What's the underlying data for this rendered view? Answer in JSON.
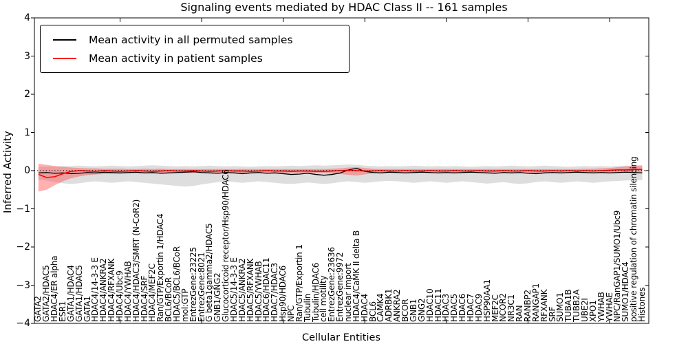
{
  "chart_data": {
    "type": "line",
    "title": "Signaling events mediated by HDAC Class II -- 161 samples",
    "xlabel": "Cellular Entities",
    "ylabel": "Inferred Activity",
    "ylim": [
      -4,
      4
    ],
    "grid": false,
    "legend_position": "upper left",
    "zero_line": {
      "y": 0,
      "style": "dotted",
      "color": "#000000"
    },
    "yticks": [
      {
        "v": 4,
        "label": "4"
      },
      {
        "v": 3,
        "label": "3"
      },
      {
        "v": 2,
        "label": "2"
      },
      {
        "v": 1,
        "label": "1"
      },
      {
        "v": 0,
        "label": "0"
      },
      {
        "v": -1,
        "label": "−1"
      },
      {
        "v": -2,
        "label": "−2"
      },
      {
        "v": -3,
        "label": "−3"
      },
      {
        "v": -4,
        "label": "−4"
      }
    ],
    "xticks_every": 10,
    "legend": [
      {
        "label": "Mean activity in all permuted samples",
        "color": "#000000"
      },
      {
        "label": "Mean activity in patient samples",
        "color": "#ff0000"
      }
    ],
    "categories": [
      "GATA2",
      "GATA2/HDAC5",
      "HDAC4/ER alpha",
      "ESR1",
      "GATA1/HDAC4",
      "GATA1/HDAC5",
      "GATA1",
      "HDAC4/14-3-3 E",
      "HDAC4/ANKRA2",
      "HDAC4/RFXANK",
      "HDAC4/Ubc9",
      "HDAC4/YWHAB",
      "HDAC4/HDAC3/SMRT (N-CoR2)",
      "HDAC4/SRF",
      "HDAC4/MEF2C",
      "Ran/GTP/Exportin 1/HDAC4",
      "BCL6/BCoR",
      "HDAC5/BCL6/BCoR",
      "mol:GTP",
      "EntrezGene:23225",
      "EntrezGene:8021",
      "G beta1gamma2/HDAC5",
      "GNB1/GNG2",
      "Glucocorticoid receptor/Hsp90/HDAC6",
      "HDAC5/14-3-3 E",
      "HDAC5/ANKRA2",
      "HDAC5/RFXANK",
      "HDAC5/YWHAB",
      "HDAC6/HDAC11",
      "HDAC7/HDAC3",
      "Hsp90/HDAC6",
      "NPC",
      "Ran/GTP/Exportin 1",
      "Tubulin",
      "Tubulin/HDAC6",
      "cell motility",
      "EntrezGene:23636",
      "EntrezGene:9972",
      "nuclear import",
      "HDAC4/CaMK II delta B",
      "HDAC4",
      "BCL6",
      "CAMK4",
      "ADRBK1",
      "ANKRA2",
      "BCOR",
      "GNB1",
      "GNG2",
      "HDAC10",
      "HDAC11",
      "HDAC3",
      "HDAC5",
      "HDAC6",
      "HDAC7",
      "HDAC9",
      "HSP90AA1",
      "MEF2C",
      "NCOR2",
      "NR3C1",
      "RAN",
      "RANBP2",
      "RANGAP1",
      "RFXANK",
      "SRF",
      "SUMO1",
      "TUBA1B",
      "TUBB2A",
      "UBE2I",
      "XPO1",
      "YWHAB",
      "YWHAE",
      "NPC/RanGAP1/SUMO1/Ubc9",
      "SUMO1/HDAC4",
      "positive regulation of chromatin silencing",
      "Histones"
    ],
    "series": [
      {
        "name": "Mean activity in all permuted samples",
        "color": "#000000",
        "band_color": "#dedede",
        "band_opacity": 1,
        "values": [
          -0.06,
          -0.05,
          -0.07,
          -0.06,
          -0.08,
          -0.07,
          -0.05,
          -0.06,
          -0.04,
          -0.05,
          -0.06,
          -0.05,
          -0.04,
          -0.06,
          -0.05,
          -0.07,
          -0.06,
          -0.05,
          -0.04,
          -0.03,
          -0.05,
          -0.06,
          -0.07,
          -0.05,
          -0.06,
          -0.08,
          -0.06,
          -0.05,
          -0.07,
          -0.06,
          -0.08,
          -0.1,
          -0.09,
          -0.07,
          -0.1,
          -0.12,
          -0.1,
          -0.06,
          0.02,
          0.06,
          -0.02,
          -0.05,
          -0.06,
          -0.04,
          -0.05,
          -0.06,
          -0.05,
          -0.04,
          -0.05,
          -0.06,
          -0.05,
          -0.06,
          -0.05,
          -0.04,
          -0.05,
          -0.06,
          -0.07,
          -0.05,
          -0.06,
          -0.05,
          -0.07,
          -0.08,
          -0.06,
          -0.05,
          -0.06,
          -0.05,
          -0.04,
          -0.05,
          -0.06,
          -0.05,
          -0.06,
          -0.05,
          -0.04,
          -0.05,
          -0.06
        ],
        "band_hi": [
          0.1,
          0.1,
          0.11,
          0.12,
          0.12,
          0.13,
          0.12,
          0.11,
          0.12,
          0.13,
          0.12,
          0.11,
          0.12,
          0.13,
          0.14,
          0.13,
          0.12,
          0.11,
          0.12,
          0.11,
          0.12,
          0.13,
          0.12,
          0.11,
          0.12,
          0.11,
          0.1,
          0.11,
          0.12,
          0.11,
          0.12,
          0.13,
          0.12,
          0.13,
          0.14,
          0.13,
          0.14,
          0.15,
          0.16,
          0.15,
          0.13,
          0.12,
          0.11,
          0.12,
          0.11,
          0.12,
          0.13,
          0.12,
          0.11,
          0.12,
          0.11,
          0.12,
          0.11,
          0.1,
          0.11,
          0.12,
          0.11,
          0.12,
          0.13,
          0.12,
          0.11,
          0.12,
          0.13,
          0.12,
          0.11,
          0.1,
          0.11,
          0.12,
          0.11,
          0.12,
          0.11,
          0.12,
          0.13,
          0.12,
          0.12
        ],
        "band_lo": [
          -0.23,
          -0.26,
          -0.3,
          -0.33,
          -0.35,
          -0.33,
          -0.3,
          -0.28,
          -0.3,
          -0.32,
          -0.3,
          -0.28,
          -0.3,
          -0.32,
          -0.34,
          -0.36,
          -0.38,
          -0.4,
          -0.42,
          -0.4,
          -0.36,
          -0.33,
          -0.3,
          -0.28,
          -0.3,
          -0.32,
          -0.3,
          -0.28,
          -0.3,
          -0.32,
          -0.34,
          -0.35,
          -0.33,
          -0.31,
          -0.33,
          -0.35,
          -0.33,
          -0.3,
          -0.28,
          -0.3,
          -0.32,
          -0.3,
          -0.28,
          -0.27,
          -0.28,
          -0.3,
          -0.32,
          -0.3,
          -0.28,
          -0.3,
          -0.32,
          -0.3,
          -0.28,
          -0.3,
          -0.32,
          -0.34,
          -0.32,
          -0.3,
          -0.33,
          -0.35,
          -0.33,
          -0.3,
          -0.28,
          -0.3,
          -0.32,
          -0.3,
          -0.28,
          -0.3,
          -0.32,
          -0.3,
          -0.28,
          -0.27,
          -0.26,
          -0.25,
          -0.25
        ]
      },
      {
        "name": "Mean activity in patient samples",
        "color": "#ff0000",
        "band_color": "#ff5050",
        "band_opacity": 0.45,
        "values": [
          -0.1,
          -0.18,
          -0.16,
          -0.08,
          -0.02,
          0.0,
          -0.01,
          -0.02,
          0.0,
          -0.01,
          -0.02,
          -0.01,
          0.0,
          -0.01,
          -0.02,
          -0.01,
          0.0,
          -0.01,
          -0.01,
          0.0,
          -0.01,
          -0.02,
          -0.01,
          0.0,
          -0.01,
          -0.01,
          -0.02,
          -0.01,
          0.0,
          -0.01,
          -0.01,
          -0.02,
          -0.01,
          -0.01,
          -0.02,
          -0.02,
          -0.01,
          0.0,
          0.01,
          0.0,
          -0.01,
          -0.01,
          0.0,
          -0.01,
          -0.01,
          0.0,
          -0.01,
          -0.01,
          0.0,
          -0.01,
          -0.01,
          0.0,
          -0.01,
          -0.01,
          0.0,
          -0.01,
          -0.01,
          0.0,
          -0.01,
          -0.01,
          0.0,
          -0.01,
          -0.01,
          0.0,
          -0.01,
          0.0,
          -0.01,
          0.0,
          -0.01,
          0.0,
          0.01,
          0.02,
          0.02,
          0.03,
          0.03
        ],
        "band_hi": [
          0.18,
          0.15,
          0.12,
          0.1,
          0.08,
          0.07,
          0.06,
          0.06,
          0.05,
          0.05,
          0.05,
          0.04,
          0.04,
          0.05,
          0.04,
          0.05,
          0.04,
          0.04,
          0.04,
          0.04,
          0.04,
          0.04,
          0.04,
          0.04,
          0.04,
          0.04,
          0.04,
          0.04,
          0.04,
          0.04,
          0.04,
          0.04,
          0.04,
          0.04,
          0.04,
          0.04,
          0.05,
          0.06,
          0.08,
          0.09,
          0.07,
          0.05,
          0.04,
          0.04,
          0.04,
          0.04,
          0.04,
          0.04,
          0.04,
          0.04,
          0.04,
          0.04,
          0.04,
          0.04,
          0.04,
          0.04,
          0.04,
          0.04,
          0.04,
          0.04,
          0.04,
          0.04,
          0.04,
          0.04,
          0.04,
          0.04,
          0.04,
          0.05,
          0.05,
          0.06,
          0.07,
          0.09,
          0.11,
          0.13,
          0.14
        ],
        "band_lo": [
          -0.55,
          -0.5,
          -0.38,
          -0.28,
          -0.2,
          -0.15,
          -0.12,
          -0.1,
          -0.09,
          -0.08,
          -0.08,
          -0.07,
          -0.07,
          -0.07,
          -0.08,
          -0.07,
          -0.06,
          -0.06,
          -0.06,
          -0.06,
          -0.06,
          -0.06,
          -0.06,
          -0.06,
          -0.06,
          -0.06,
          -0.06,
          -0.06,
          -0.06,
          -0.06,
          -0.06,
          -0.06,
          -0.06,
          -0.06,
          -0.07,
          -0.07,
          -0.08,
          -0.09,
          -0.11,
          -0.13,
          -0.1,
          -0.07,
          -0.06,
          -0.06,
          -0.06,
          -0.06,
          -0.06,
          -0.06,
          -0.06,
          -0.06,
          -0.06,
          -0.06,
          -0.06,
          -0.06,
          -0.06,
          -0.06,
          -0.06,
          -0.06,
          -0.06,
          -0.06,
          -0.06,
          -0.06,
          -0.06,
          -0.06,
          -0.06,
          -0.06,
          -0.06,
          -0.06,
          -0.06,
          -0.06,
          -0.06,
          -0.05,
          -0.05,
          -0.05,
          -0.05
        ]
      }
    ]
  }
}
